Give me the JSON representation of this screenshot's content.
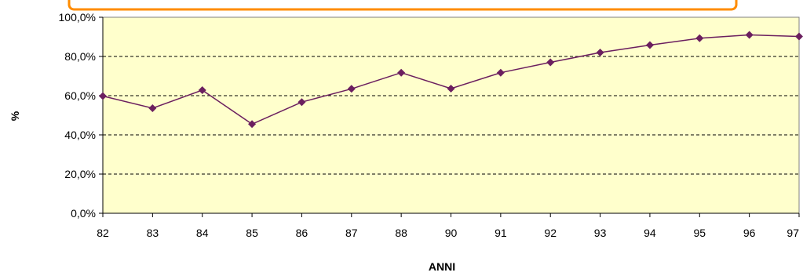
{
  "colors": {
    "plot_background": "#ffffcc",
    "series_line": "#6b1f5f",
    "gridline": "#000000",
    "title_box_border": "#ff8c00"
  },
  "chart_data": {
    "type": "line",
    "title": "",
    "xlabel": "ANNI",
    "ylabel": "%",
    "categories": [
      "82",
      "83",
      "84",
      "85",
      "86",
      "87",
      "88",
      "90",
      "91",
      "92",
      "93",
      "94",
      "95",
      "96",
      "97"
    ],
    "series": [
      {
        "values": [
          59.8,
          53.6,
          62.8,
          45.5,
          56.7,
          63.5,
          71.7,
          63.6,
          71.7,
          77.0,
          82.0,
          85.8,
          89.3,
          91.0,
          90.2
        ]
      }
    ],
    "ylim": [
      0,
      100
    ],
    "yticks": [
      0,
      20,
      40,
      60,
      80,
      100
    ],
    "ytick_labels": [
      "0,0%",
      "20,0%",
      "40,0%",
      "60,0%",
      "80,0%",
      "100,0%"
    ],
    "grid": true,
    "grid_style": "dashed",
    "marker": "diamond"
  }
}
